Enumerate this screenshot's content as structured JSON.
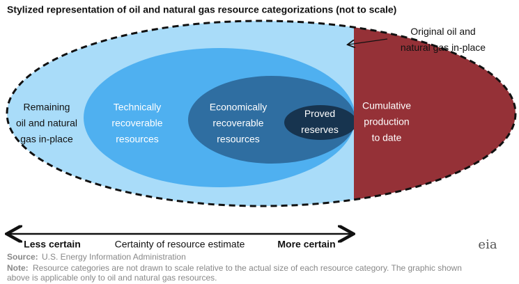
{
  "title": "Stylized representation of oil and natural gas resource categorizations (not to scale)",
  "regions": {
    "remaining": [
      "Remaining",
      "oil and natural",
      "gas in-place"
    ],
    "technically": [
      "Technically",
      "recoverable",
      "resources"
    ],
    "economically": [
      "Economically",
      "recoverable",
      "resources"
    ],
    "proved": [
      "Proved",
      "reserves"
    ],
    "cumulative": [
      "Cumulative",
      "production",
      "to date"
    ]
  },
  "annotation": [
    "Original oil and",
    "natural gas in-place"
  ],
  "axis": {
    "left": "Less certain",
    "middle": "Certainty of resource estimate",
    "right": "More certain"
  },
  "source": {
    "label": "Source:",
    "text": "U.S. Energy Information Administration"
  },
  "note": {
    "label": "Note:",
    "lines": [
      "Resource categories are not drawn to scale relative to the actual size of each resource category. The graphic shown",
      "above is applicable only to oil and natural gas resources."
    ]
  },
  "logo": "eia"
}
